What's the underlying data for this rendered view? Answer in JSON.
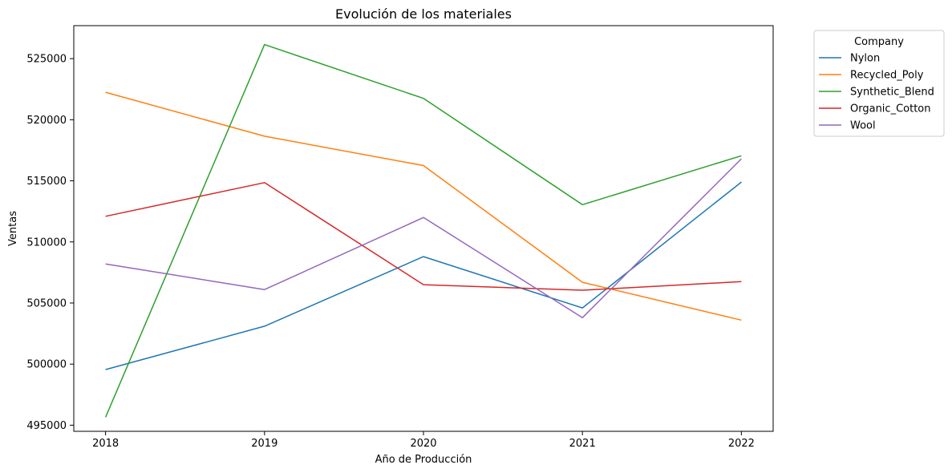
{
  "chart_data": {
    "type": "line",
    "title": "Evolución de los materiales",
    "xlabel": "Año de Producción",
    "ylabel": "Ventas",
    "x": [
      "2018",
      "2019",
      "2020",
      "2021",
      "2022"
    ],
    "xlim": [
      2017.8,
      2022.2
    ],
    "ylim": [
      494500,
      527700
    ],
    "yticks": [
      495000,
      500000,
      505000,
      510000,
      515000,
      520000,
      525000
    ],
    "grid": false,
    "legend": {
      "title": "Company",
      "placement": "outside-top-right"
    },
    "series": [
      {
        "name": "Nylon",
        "color": "#1f77b4",
        "values": [
          499550,
          503100,
          508800,
          504600,
          514900
        ]
      },
      {
        "name": "Recycled_Poly",
        "color": "#ff7f0e",
        "values": [
          522250,
          518650,
          516250,
          506700,
          503600
        ]
      },
      {
        "name": "Synthetic_Blend",
        "color": "#2ca02c",
        "values": [
          495650,
          526150,
          521750,
          513050,
          517050
        ]
      },
      {
        "name": "Organic_Cotton",
        "color": "#d62728",
        "values": [
          512100,
          514850,
          506500,
          506050,
          506750
        ]
      },
      {
        "name": "Wool",
        "color": "#9467bd",
        "values": [
          508200,
          506100,
          512000,
          503800,
          516800
        ]
      }
    ]
  }
}
